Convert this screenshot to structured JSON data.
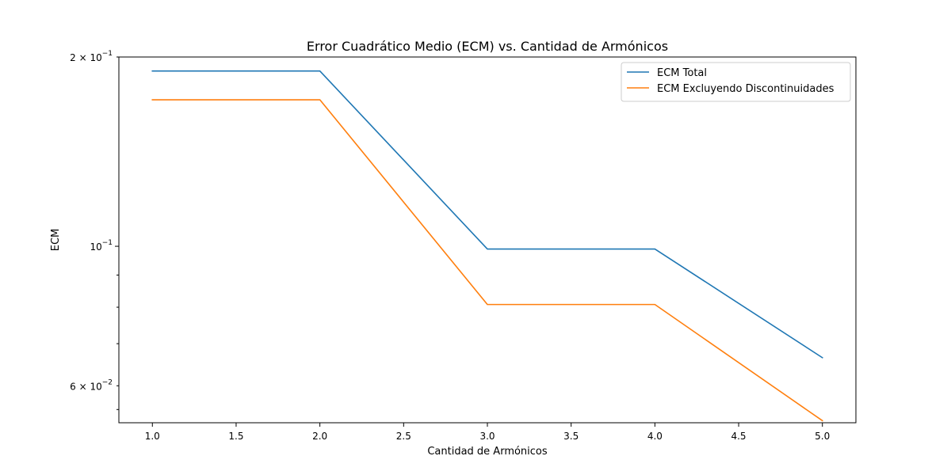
{
  "chart_data": {
    "type": "line",
    "title": "Error Cuadrático Medio (ECM) vs. Cantidad de Armónicos",
    "xlabel": "Cantidad de Armónicos",
    "ylabel": "ECM",
    "yscale": "log",
    "xlim": [
      0.8,
      5.2
    ],
    "ylim": [
      0.0524,
      0.2
    ],
    "x_ticks": [
      {
        "value": 1.0,
        "label": "1.0"
      },
      {
        "value": 1.5,
        "label": "1.5"
      },
      {
        "value": 2.0,
        "label": "2.0"
      },
      {
        "value": 2.5,
        "label": "2.5"
      },
      {
        "value": 3.0,
        "label": "3.0"
      },
      {
        "value": 3.5,
        "label": "3.5"
      },
      {
        "value": 4.0,
        "label": "4.0"
      },
      {
        "value": 4.5,
        "label": "4.5"
      },
      {
        "value": 5.0,
        "label": "5.0"
      }
    ],
    "y_major_ticks": [
      {
        "value": 0.1,
        "mantissa": "10",
        "exponent": "−1"
      }
    ],
    "y_minor_ticks": [
      {
        "value": 0.06,
        "mantissa": "6 × 10",
        "exponent": "−2"
      },
      {
        "value": 0.2,
        "mantissa": "2 × 10",
        "exponent": "−1"
      },
      {
        "value": 0.055,
        "mantissa": "",
        "exponent": ""
      },
      {
        "value": 0.07,
        "mantissa": "",
        "exponent": ""
      },
      {
        "value": 0.08,
        "mantissa": "",
        "exponent": ""
      },
      {
        "value": 0.09,
        "mantissa": "",
        "exponent": ""
      }
    ],
    "legend_position": "top-right",
    "grid": false,
    "series": [
      {
        "name": "ECM Total",
        "color": "#1f77b4",
        "x": [
          1,
          2,
          3,
          4,
          5
        ],
        "y": [
          0.19,
          0.19,
          0.099,
          0.099,
          0.0665
        ]
      },
      {
        "name": "ECM Excluyendo Discontinuidades",
        "color": "#ff7f0e",
        "x": [
          1,
          2,
          3,
          4,
          5
        ],
        "y": [
          0.171,
          0.171,
          0.0808,
          0.0808,
          0.0528
        ]
      }
    ]
  }
}
